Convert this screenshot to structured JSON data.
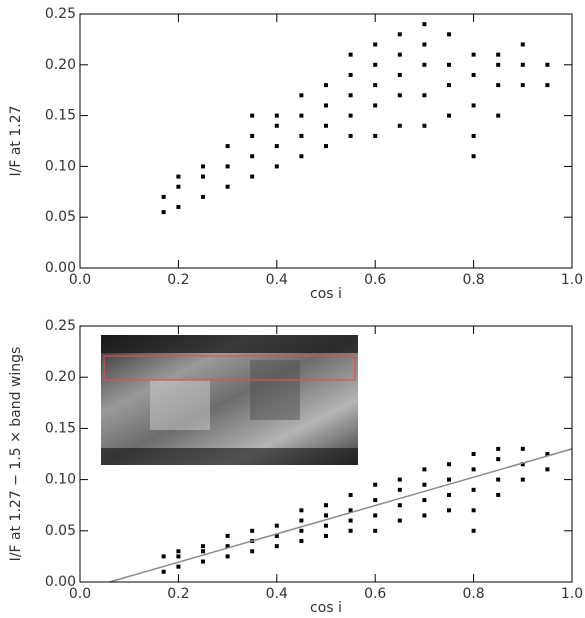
{
  "chart_data": [
    {
      "type": "scatter",
      "x_label": "cos i",
      "y_label": "I/F at 1.27",
      "xlim": [
        0,
        1
      ],
      "ylim": [
        0,
        0.25
      ],
      "xticks": [
        {
          "value": 0,
          "label": "0.0"
        },
        0.2,
        0.4,
        0.6,
        0.8,
        {
          "value": 1,
          "label": "1.0"
        }
      ],
      "yticks": [
        {
          "value": 0,
          "label": "0.00"
        },
        {
          "value": 0.05,
          "label": "0.05"
        },
        {
          "value": 0.1,
          "label": "0.10"
        },
        {
          "value": 0.15,
          "label": "0.15"
        },
        {
          "value": 0.2,
          "label": "0.20"
        },
        {
          "value": 0.25,
          "label": "0.25"
        }
      ],
      "series": [
        {
          "type": "scatter",
          "color": "#000000",
          "x": [
            0.17,
            0.17,
            0.2,
            0.2,
            0.2,
            0.25,
            0.25,
            0.25,
            0.3,
            0.3,
            0.3,
            0.35,
            0.35,
            0.35,
            0.35,
            0.4,
            0.4,
            0.4,
            0.4,
            0.45,
            0.45,
            0.45,
            0.45,
            0.5,
            0.5,
            0.5,
            0.5,
            0.55,
            0.55,
            0.55,
            0.55,
            0.55,
            0.6,
            0.6,
            0.6,
            0.6,
            0.6,
            0.65,
            0.65,
            0.65,
            0.65,
            0.65,
            0.7,
            0.7,
            0.7,
            0.7,
            0.7,
            0.75,
            0.75,
            0.75,
            0.75,
            0.8,
            0.8,
            0.8,
            0.8,
            0.8,
            0.85,
            0.85,
            0.85,
            0.85,
            0.9,
            0.9,
            0.9,
            0.95,
            0.95
          ],
          "values": [
            0.055,
            0.07,
            0.06,
            0.08,
            0.09,
            0.07,
            0.09,
            0.1,
            0.08,
            0.1,
            0.12,
            0.09,
            0.11,
            0.13,
            0.15,
            0.1,
            0.12,
            0.14,
            0.15,
            0.11,
            0.13,
            0.15,
            0.17,
            0.12,
            0.14,
            0.16,
            0.18,
            0.13,
            0.15,
            0.17,
            0.19,
            0.21,
            0.13,
            0.16,
            0.18,
            0.2,
            0.22,
            0.14,
            0.17,
            0.19,
            0.21,
            0.23,
            0.14,
            0.17,
            0.2,
            0.22,
            0.24,
            0.15,
            0.18,
            0.2,
            0.23,
            0.11,
            0.13,
            0.16,
            0.19,
            0.21,
            0.15,
            0.18,
            0.2,
            0.21,
            0.18,
            0.2,
            0.22,
            0.18,
            0.2
          ]
        }
      ]
    },
    {
      "type": "scatter",
      "x_label": "cos i",
      "y_label": "I/F at 1.27 − 1.5 × band wings",
      "xlim": [
        0,
        1
      ],
      "ylim": [
        0,
        0.25
      ],
      "xticks": [
        {
          "value": 0,
          "label": "0.0"
        },
        0.2,
        0.4,
        0.6,
        0.8,
        {
          "value": 1,
          "label": "1.0"
        }
      ],
      "yticks": [
        {
          "value": 0,
          "label": "0.00"
        },
        {
          "value": 0.05,
          "label": "0.05"
        },
        {
          "value": 0.1,
          "label": "0.10"
        },
        {
          "value": 0.15,
          "label": "0.15"
        },
        {
          "value": 0.2,
          "label": "0.20"
        },
        {
          "value": 0.25,
          "label": "0.25"
        }
      ],
      "series": [
        {
          "type": "scatter",
          "color": "#000000",
          "x": [
            0.17,
            0.17,
            0.2,
            0.2,
            0.2,
            0.25,
            0.25,
            0.25,
            0.3,
            0.3,
            0.3,
            0.35,
            0.35,
            0.35,
            0.4,
            0.4,
            0.4,
            0.45,
            0.45,
            0.45,
            0.45,
            0.5,
            0.5,
            0.5,
            0.5,
            0.55,
            0.55,
            0.55,
            0.55,
            0.6,
            0.6,
            0.6,
            0.6,
            0.65,
            0.65,
            0.65,
            0.65,
            0.7,
            0.7,
            0.7,
            0.7,
            0.75,
            0.75,
            0.75,
            0.75,
            0.8,
            0.8,
            0.8,
            0.8,
            0.8,
            0.85,
            0.85,
            0.85,
            0.85,
            0.9,
            0.9,
            0.9,
            0.95,
            0.95
          ],
          "values": [
            0.01,
            0.025,
            0.015,
            0.025,
            0.03,
            0.02,
            0.03,
            0.035,
            0.025,
            0.035,
            0.045,
            0.03,
            0.04,
            0.05,
            0.035,
            0.045,
            0.055,
            0.04,
            0.05,
            0.06,
            0.07,
            0.045,
            0.055,
            0.065,
            0.075,
            0.05,
            0.06,
            0.07,
            0.085,
            0.05,
            0.065,
            0.08,
            0.095,
            0.06,
            0.075,
            0.09,
            0.1,
            0.065,
            0.08,
            0.095,
            0.11,
            0.07,
            0.085,
            0.1,
            0.115,
            0.05,
            0.07,
            0.09,
            0.11,
            0.125,
            0.085,
            0.1,
            0.12,
            0.13,
            0.1,
            0.115,
            0.13,
            0.11,
            0.125
          ]
        },
        {
          "type": "line",
          "color": "#8a8a8a",
          "x": [
            0.06,
            1
          ],
          "values": [
            0,
            0.13
          ]
        }
      ]
    }
  ]
}
